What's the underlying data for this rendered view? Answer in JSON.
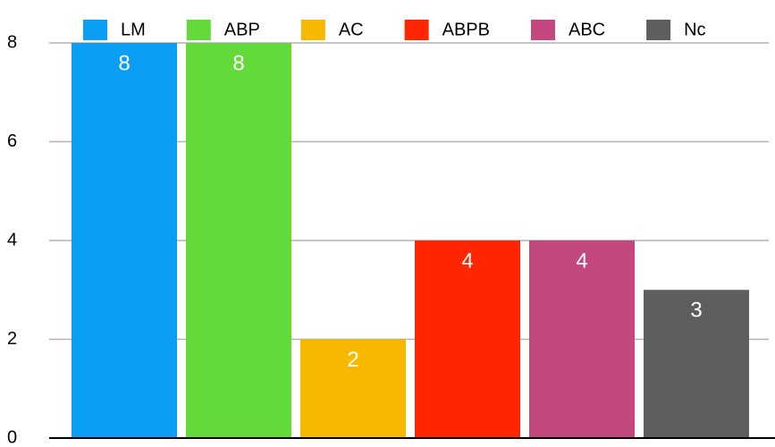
{
  "chart_data": {
    "type": "bar",
    "series": [
      {
        "name": "LM",
        "color": "#0a9ff5",
        "values": [
          8
        ]
      },
      {
        "name": "ABP",
        "color": "#63d93a",
        "values": [
          8
        ]
      },
      {
        "name": "AC",
        "color": "#f6b900",
        "values": [
          2
        ]
      },
      {
        "name": "ABPB",
        "color": "#ff2600",
        "values": [
          4
        ]
      },
      {
        "name": "ABC",
        "color": "#c2487f",
        "values": [
          4
        ]
      },
      {
        "name": "Nc",
        "color": "#5e5e5e",
        "values": [
          3
        ]
      }
    ],
    "ylim": [
      0,
      8
    ],
    "yticks": [
      0,
      2,
      4,
      6,
      8
    ],
    "grid": true,
    "legend": "top"
  }
}
